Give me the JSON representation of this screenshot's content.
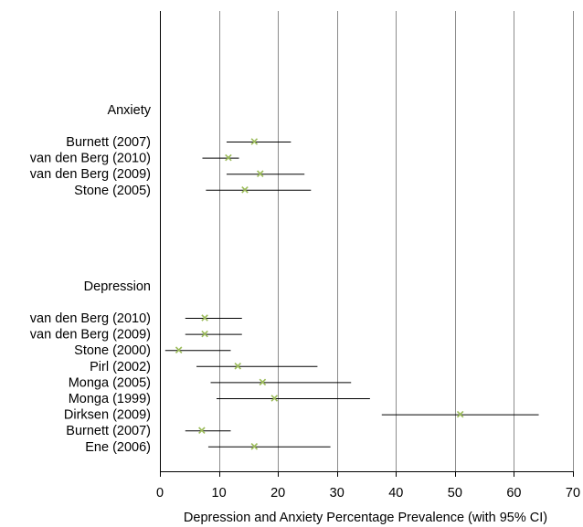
{
  "chart_data": {
    "type": "forest",
    "xlabel": "Depression and Anxiety Percentage Prevalence (with 95% CI)",
    "xlim": [
      0,
      70
    ],
    "xticks": [
      0,
      10,
      20,
      30,
      40,
      50,
      60,
      70
    ],
    "grid": true,
    "marker_color": "#9bbb59",
    "groups": [
      {
        "label": "Anxiety",
        "studies": [
          {
            "label": "Burnett (2007)",
            "estimate": 16,
            "lower": 11.3,
            "upper": 22.2
          },
          {
            "label": "van den Berg (2010)",
            "estimate": 11.6,
            "lower": 7.2,
            "upper": 13.4
          },
          {
            "label": "van den Berg (2009)",
            "estimate": 17,
            "lower": 11.3,
            "upper": 24.5
          },
          {
            "label": "Stone (2005)",
            "estimate": 14.4,
            "lower": 7.8,
            "upper": 25.6
          }
        ]
      },
      {
        "label": "Depression",
        "studies": [
          {
            "label": "van den Berg (2010)",
            "estimate": 7.6,
            "lower": 4.3,
            "upper": 13.9
          },
          {
            "label": "van den Berg (2009)",
            "estimate": 7.6,
            "lower": 4.3,
            "upper": 13.9
          },
          {
            "label": "Stone (2000)",
            "estimate": 3.2,
            "lower": 0.9,
            "upper": 12
          },
          {
            "label": "Pirl (2002)",
            "estimate": 13.2,
            "lower": 6.2,
            "upper": 26.7
          },
          {
            "label": "Monga (2005)",
            "estimate": 17.4,
            "lower": 8.6,
            "upper": 32.4
          },
          {
            "label": "Monga (1999)",
            "estimate": 19.4,
            "lower": 9.6,
            "upper": 35.6
          },
          {
            "label": "Dirksen (2009)",
            "estimate": 50.9,
            "lower": 37.6,
            "upper": 64.2
          },
          {
            "label": "Burnett (2007)",
            "estimate": 7.1,
            "lower": 4.3,
            "upper": 12
          },
          {
            "label": "Ene (2006)",
            "estimate": 16,
            "lower": 8.2,
            "upper": 28.9
          }
        ]
      }
    ]
  }
}
